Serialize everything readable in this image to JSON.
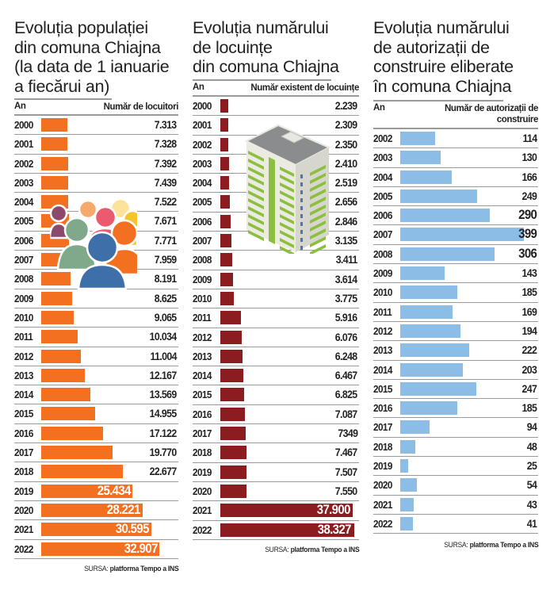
{
  "colors": {
    "population_bar": "#f37021",
    "housing_bar": "#8b1c1f",
    "permits_bar": "#8bbde6",
    "text": "#231f20",
    "rule": "#9a9a9a"
  },
  "panels": [
    {
      "title_lines": [
        "Evoluția populației",
        "din comuna Chiajna",
        "(la data de 1 ianuarie",
        "a fiecărui an)"
      ],
      "col_year": "An",
      "col_value_lines": [
        "Număr de locuitori"
      ],
      "source_prefix": "SURSA:",
      "source_name": "platforma Tempo a INS",
      "illustration_icon": "people-group-icon"
    },
    {
      "title_lines": [
        "Evoluția numărului",
        "de locuințe",
        "din comuna Chiajna"
      ],
      "col_year": "An",
      "col_value_lines": [
        "Număr existent de locuințe"
      ],
      "source_prefix": "SURSA:",
      "source_name": "platforma Tempo a INS",
      "illustration_icon": "apartment-building-icon"
    },
    {
      "title_lines": [
        "Evoluția numărului",
        "de autorizații de",
        "construire eliberate",
        "în comuna Chiajna"
      ],
      "col_year": "An",
      "col_value_lines": [
        "Număr de autorizații de",
        "construire"
      ],
      "source_prefix": "SURSA:",
      "source_name": "platforma Tempo a INS",
      "illustration_icon": null
    }
  ],
  "chart_data": [
    {
      "type": "bar",
      "orientation": "horizontal",
      "title": "Evoluția populației din comuna Chiajna (la data de 1 ianuarie a fiecărui an)",
      "xlabel": "Număr de locuitori",
      "ylabel": "An",
      "categories": [
        "2000",
        "2001",
        "2002",
        "2003",
        "2004",
        "2005",
        "2006",
        "2007",
        "2008",
        "2009",
        "2010",
        "2011",
        "2012",
        "2013",
        "2014",
        "2015",
        "2016",
        "2017",
        "2018",
        "2019",
        "2020",
        "2021",
        "2022"
      ],
      "values": [
        7313,
        7328,
        7392,
        7439,
        7522,
        7671,
        7771,
        7959,
        8191,
        8625,
        9065,
        10034,
        11004,
        12167,
        13569,
        14955,
        17122,
        19770,
        22677,
        25434,
        28221,
        30595,
        32907
      ],
      "labels": [
        "7.313",
        "7.328",
        "7.392",
        "7.439",
        "7.522",
        "7.671",
        "7.771",
        "7.959",
        "8.191",
        "8.625",
        "9.065",
        "10.034",
        "11.004",
        "12.167",
        "13.569",
        "14.955",
        "17.122",
        "19.770",
        "22.677",
        "25.434",
        "28.221",
        "30.595",
        "32.907"
      ],
      "xlim": [
        0,
        33500
      ],
      "source": "SURSA: platforma Tempo a INS"
    },
    {
      "type": "bar",
      "orientation": "horizontal",
      "title": "Evoluția numărului de locuințe din comuna Chiajna",
      "xlabel": "Număr existent de locuințe",
      "ylabel": "An",
      "categories": [
        "2000",
        "2001",
        "2002",
        "2003",
        "2004",
        "2005",
        "2006",
        "2007",
        "2008",
        "2009",
        "2010",
        "2011",
        "2012",
        "2013",
        "2014",
        "2015",
        "2016",
        "2017",
        "2018",
        "2019",
        "2020",
        "2021",
        "2022"
      ],
      "values": [
        2239,
        2309,
        2350,
        2410,
        2519,
        2656,
        2846,
        3135,
        3411,
        3614,
        3775,
        5916,
        6076,
        6248,
        6467,
        6825,
        7087,
        7349,
        7467,
        7507,
        7550,
        37900,
        38327
      ],
      "labels": [
        "2.239",
        "2.309",
        "2.350",
        "2.410",
        "2.519",
        "2.656",
        "2.846",
        "3.135",
        "3.411",
        "3.614",
        "3.775",
        "5.916",
        "6.076",
        "6.248",
        "6.467",
        "6.825",
        "7.087",
        "7349",
        "7.467",
        "7.507",
        "7.550",
        "37.900",
        "38.327"
      ],
      "xlim": [
        0,
        38500
      ],
      "source": "SURSA: platforma Tempo a INS"
    },
    {
      "type": "bar",
      "orientation": "horizontal",
      "title": "Evoluția numărului de autorizații de construire eliberate în comuna Chiajna",
      "xlabel": "Număr de autorizații de construire",
      "ylabel": "An",
      "categories": [
        "2002",
        "2003",
        "2004",
        "2005",
        "2006",
        "2007",
        "2008",
        "2009",
        "2010",
        "2011",
        "2012",
        "2013",
        "2014",
        "2015",
        "2016",
        "2017",
        "2018",
        "2019",
        "2020",
        "2021",
        "2022"
      ],
      "values": [
        114,
        130,
        166,
        249,
        290,
        399,
        306,
        143,
        185,
        169,
        194,
        222,
        203,
        247,
        185,
        94,
        48,
        25,
        54,
        43,
        41
      ],
      "labels": [
        "114",
        "130",
        "166",
        "249",
        "290",
        "399",
        "306",
        "143",
        "185",
        "169",
        "194",
        "222",
        "203",
        "247",
        "185",
        "94",
        "48",
        "25",
        "54",
        "43",
        "41"
      ],
      "xlim": [
        0,
        400
      ],
      "source": "SURSA: platforma Tempo a INS"
    }
  ]
}
